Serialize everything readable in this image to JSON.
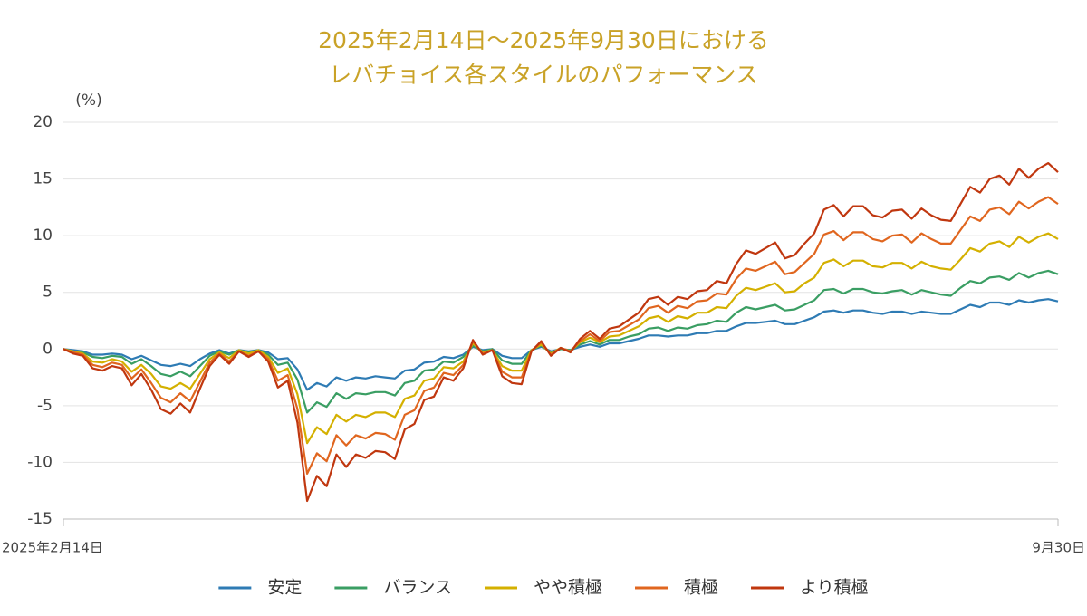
{
  "chart_data": {
    "type": "line",
    "title": [
      "2025年2月14日～2025年9月30日における",
      "レバチョイス各スタイルのパフォーマンス"
    ],
    "y_unit_label": "(%)",
    "categories": [
      "2025年2月14日",
      null,
      null,
      null,
      null,
      null,
      null,
      null,
      null,
      null,
      null,
      null,
      null,
      null,
      null,
      null,
      null,
      null,
      null,
      null,
      null,
      null,
      null,
      null,
      null,
      null,
      null,
      null,
      null,
      null,
      null,
      null,
      null,
      null,
      null,
      null,
      null,
      null,
      null,
      null,
      null,
      null,
      null,
      null,
      null,
      null,
      null,
      null,
      null,
      null,
      null,
      null,
      null,
      null,
      null,
      null,
      null,
      null,
      null,
      null,
      null,
      null,
      null,
      null,
      null,
      null,
      null,
      null,
      null,
      null,
      null,
      null,
      null,
      null,
      null,
      null,
      null,
      null,
      null,
      null,
      null,
      null,
      null,
      null,
      null,
      null,
      null,
      null,
      null,
      null,
      null,
      null,
      null,
      null,
      null,
      null,
      null,
      null,
      null,
      null,
      null,
      null,
      "9月30日"
    ],
    "ylim": [
      -15,
      20
    ],
    "yticks": [
      -15,
      -10,
      -5,
      0,
      5,
      10,
      15,
      20
    ],
    "grid": true,
    "legend": "bottom",
    "series": [
      {
        "name": "安定",
        "color": "#2e7bb4",
        "values": [
          0,
          -0.1,
          -0.2,
          -0.5,
          -0.5,
          -0.4,
          -0.5,
          -0.9,
          -0.6,
          -1.0,
          -1.4,
          -1.5,
          -1.3,
          -1.5,
          -0.9,
          -0.4,
          -0.1,
          -0.4,
          -0.1,
          -0.2,
          -0.1,
          -0.3,
          -0.9,
          -0.8,
          -1.8,
          -3.6,
          -3.0,
          -3.3,
          -2.5,
          -2.8,
          -2.5,
          -2.6,
          -2.4,
          -2.5,
          -2.6,
          -1.9,
          -1.8,
          -1.2,
          -1.1,
          -0.7,
          -0.8,
          -0.5,
          0.2,
          -0.1,
          0,
          -0.6,
          -0.8,
          -0.8,
          -0.1,
          0.2,
          -0.2,
          0,
          -0.1,
          0.2,
          0.4,
          0.2,
          0.5,
          0.5,
          0.7,
          0.9,
          1.2,
          1.2,
          1.1,
          1.2,
          1.2,
          1.4,
          1.4,
          1.6,
          1.6,
          2.0,
          2.3,
          2.3,
          2.4,
          2.5,
          2.2,
          2.2,
          2.5,
          2.8,
          3.3,
          3.4,
          3.2,
          3.4,
          3.4,
          3.2,
          3.1,
          3.3,
          3.3,
          3.1,
          3.3,
          3.2,
          3.1,
          3.1,
          3.5,
          3.9,
          3.7,
          4.1,
          4.1,
          3.9,
          4.3,
          4.1,
          4.3,
          4.4,
          4.2
        ]
      },
      {
        "name": "バランス",
        "color": "#3a9e63",
        "values": [
          0,
          -0.2,
          -0.3,
          -0.7,
          -0.8,
          -0.6,
          -0.7,
          -1.3,
          -0.9,
          -1.5,
          -2.2,
          -2.4,
          -2.0,
          -2.4,
          -1.5,
          -0.6,
          -0.2,
          -0.5,
          -0.1,
          -0.3,
          -0.1,
          -0.5,
          -1.4,
          -1.2,
          -2.7,
          -5.6,
          -4.7,
          -5.1,
          -3.9,
          -4.4,
          -3.9,
          -4.0,
          -3.8,
          -3.8,
          -4.1,
          -3.0,
          -2.8,
          -1.9,
          -1.8,
          -1.1,
          -1.2,
          -0.7,
          0.3,
          -0.2,
          0,
          -1.0,
          -1.3,
          -1.3,
          -0.1,
          0.3,
          -0.3,
          0,
          -0.1,
          0.4,
          0.7,
          0.4,
          0.8,
          0.8,
          1.1,
          1.3,
          1.8,
          1.9,
          1.6,
          1.9,
          1.8,
          2.1,
          2.2,
          2.5,
          2.4,
          3.2,
          3.7,
          3.5,
          3.7,
          3.9,
          3.4,
          3.5,
          3.9,
          4.3,
          5.2,
          5.3,
          4.9,
          5.3,
          5.3,
          5.0,
          4.9,
          5.1,
          5.2,
          4.8,
          5.2,
          5.0,
          4.8,
          4.7,
          5.4,
          6.0,
          5.8,
          6.3,
          6.4,
          6.1,
          6.7,
          6.3,
          6.7,
          6.9,
          6.6
        ]
      },
      {
        "name": "やや積極",
        "color": "#d4b000",
        "values": [
          0,
          -0.2,
          -0.4,
          -1.1,
          -1.2,
          -0.9,
          -1.1,
          -2.0,
          -1.4,
          -2.2,
          -3.3,
          -3.5,
          -3.0,
          -3.5,
          -2.2,
          -0.9,
          -0.3,
          -0.8,
          -0.1,
          -0.4,
          -0.1,
          -0.7,
          -2.1,
          -1.7,
          -4.0,
          -8.3,
          -6.9,
          -7.5,
          -5.8,
          -6.4,
          -5.8,
          -6.0,
          -5.6,
          -5.6,
          -6.0,
          -4.4,
          -4.1,
          -2.8,
          -2.6,
          -1.6,
          -1.7,
          -1.1,
          0.5,
          -0.3,
          -0.1,
          -1.5,
          -1.9,
          -1.9,
          -0.1,
          0.4,
          -0.4,
          0.1,
          -0.2,
          0.6,
          1.0,
          0.6,
          1.1,
          1.2,
          1.6,
          2.0,
          2.7,
          2.9,
          2.4,
          2.9,
          2.7,
          3.2,
          3.2,
          3.7,
          3.6,
          4.7,
          5.4,
          5.2,
          5.5,
          5.8,
          5.0,
          5.1,
          5.8,
          6.3,
          7.6,
          7.9,
          7.3,
          7.8,
          7.8,
          7.3,
          7.2,
          7.6,
          7.6,
          7.1,
          7.7,
          7.3,
          7.1,
          7.0,
          7.9,
          8.9,
          8.6,
          9.3,
          9.5,
          9.0,
          9.9,
          9.4,
          9.9,
          10.2,
          9.7
        ]
      },
      {
        "name": "積極",
        "color": "#e0661f",
        "values": [
          0,
          -0.3,
          -0.5,
          -1.4,
          -1.6,
          -1.2,
          -1.4,
          -2.6,
          -1.8,
          -3.0,
          -4.3,
          -4.7,
          -3.9,
          -4.6,
          -2.9,
          -1.2,
          -0.4,
          -1.1,
          -0.2,
          -0.6,
          -0.2,
          -0.9,
          -2.8,
          -2.3,
          -5.3,
          -11.0,
          -9.2,
          -9.9,
          -7.6,
          -8.5,
          -7.6,
          -7.9,
          -7.4,
          -7.5,
          -8.0,
          -5.8,
          -5.4,
          -3.7,
          -3.4,
          -2.1,
          -2.3,
          -1.4,
          0.7,
          -0.4,
          -0.1,
          -2.0,
          -2.5,
          -2.5,
          -0.2,
          0.6,
          -0.5,
          0.1,
          -0.2,
          0.7,
          1.3,
          0.7,
          1.5,
          1.6,
          2.1,
          2.6,
          3.6,
          3.8,
          3.2,
          3.8,
          3.6,
          4.2,
          4.3,
          4.9,
          4.8,
          6.2,
          7.1,
          6.9,
          7.3,
          7.7,
          6.6,
          6.8,
          7.6,
          8.4,
          10.1,
          10.4,
          9.6,
          10.3,
          10.3,
          9.7,
          9.5,
          10.0,
          10.1,
          9.4,
          10.2,
          9.7,
          9.3,
          9.3,
          10.5,
          11.7,
          11.3,
          12.3,
          12.5,
          11.9,
          13.0,
          12.4,
          13.0,
          13.4,
          12.8
        ]
      },
      {
        "name": "より積極",
        "color": "#c0370f",
        "values": [
          0,
          -0.4,
          -0.6,
          -1.7,
          -1.9,
          -1.5,
          -1.7,
          -3.2,
          -2.2,
          -3.6,
          -5.3,
          -5.7,
          -4.8,
          -5.6,
          -3.5,
          -1.5,
          -0.5,
          -1.3,
          -0.2,
          -0.7,
          -0.2,
          -1.1,
          -3.4,
          -2.8,
          -6.5,
          -13.4,
          -11.2,
          -12.1,
          -9.3,
          -10.4,
          -9.3,
          -9.6,
          -9.0,
          -9.1,
          -9.7,
          -7.1,
          -6.6,
          -4.5,
          -4.2,
          -2.5,
          -2.8,
          -1.7,
          0.8,
          -0.5,
          -0.1,
          -2.4,
          -3.0,
          -3.1,
          -0.2,
          0.7,
          -0.6,
          0.1,
          -0.3,
          0.9,
          1.6,
          0.9,
          1.8,
          2.0,
          2.6,
          3.2,
          4.4,
          4.6,
          3.9,
          4.6,
          4.4,
          5.1,
          5.2,
          6.0,
          5.8,
          7.5,
          8.7,
          8.4,
          8.9,
          9.4,
          8.0,
          8.3,
          9.3,
          10.2,
          12.3,
          12.7,
          11.7,
          12.6,
          12.6,
          11.8,
          11.6,
          12.2,
          12.3,
          11.5,
          12.4,
          11.8,
          11.4,
          11.3,
          12.8,
          14.3,
          13.8,
          15.0,
          15.3,
          14.5,
          15.9,
          15.1,
          15.9,
          16.4,
          15.6
        ]
      }
    ]
  }
}
